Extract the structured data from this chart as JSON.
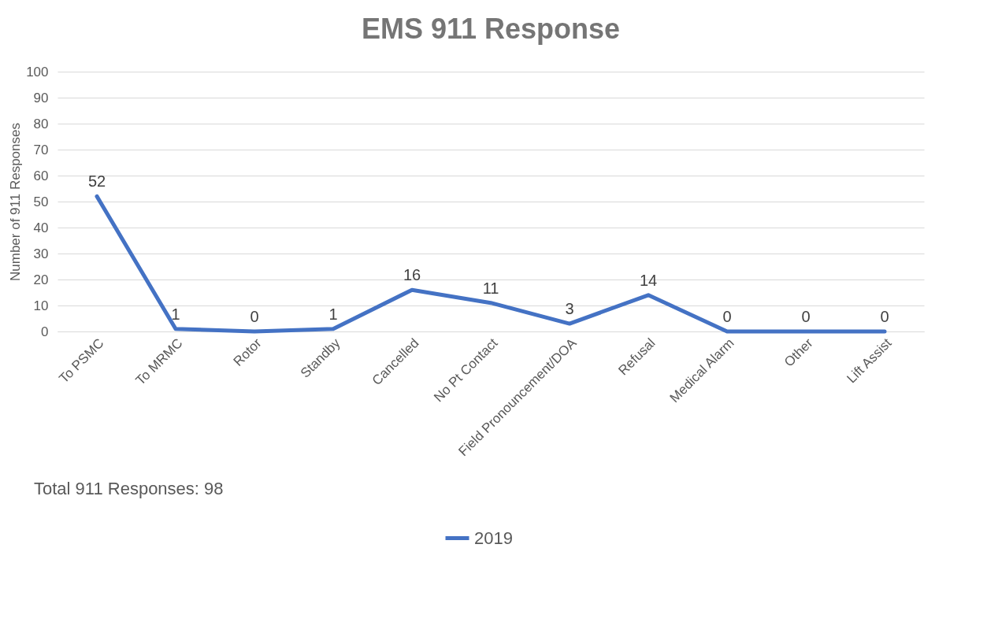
{
  "chart_data": {
    "type": "line",
    "title": "EMS 911 Response",
    "ylabel": "Number of 911 Responses",
    "categories": [
      "To PSMC",
      "To MRMC",
      "Rotor",
      "Standby",
      "Cancelled",
      "No Pt Contact",
      "Field Pronouncement/DOA",
      "Refusal",
      "Medical Alarm",
      "Other",
      "Lift Assist"
    ],
    "series": [
      {
        "name": "2019",
        "color": "#4472c4",
        "values": [
          52,
          1,
          0,
          1,
          16,
          11,
          3,
          14,
          0,
          0,
          0
        ]
      }
    ],
    "ylim": [
      0,
      100
    ],
    "yticks": [
      0,
      10,
      20,
      30,
      40,
      50,
      60,
      70,
      80,
      90,
      100
    ],
    "grid": "y",
    "legend": "bottom",
    "data_labels": true,
    "marker": "none",
    "line_style": "solid",
    "annotations": [
      "Total 911 Responses: 98"
    ]
  }
}
